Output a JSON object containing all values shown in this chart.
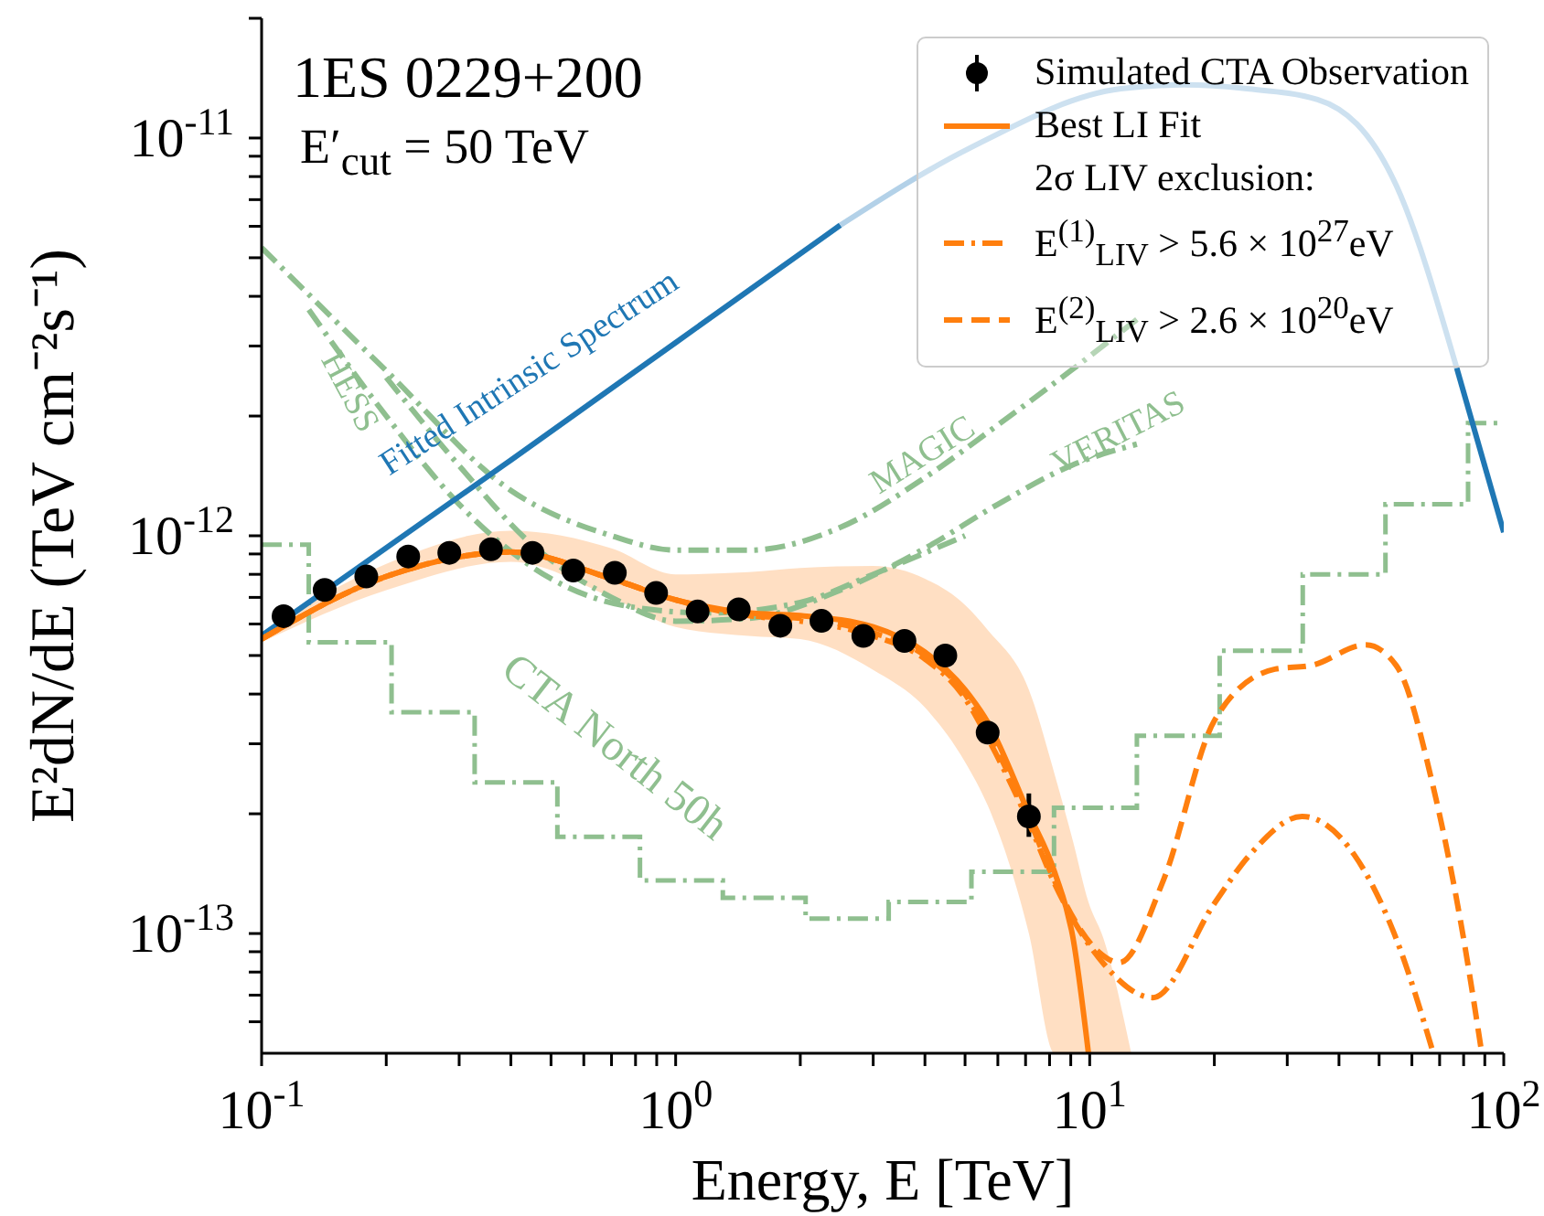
{
  "chart_data": {
    "type": "line",
    "title": "1ES 0229+200",
    "subtitle": "E′$_{cut}$ = 50 TeV",
    "xlabel": "Energy, E [TeV]",
    "ylabel": "E²dN/dE (TeV cm⁻²s⁻¹)",
    "log": "xy",
    "xlim": [
      0.1,
      100
    ],
    "ylim": [
      5e-14,
      2e-11
    ],
    "xticks": [
      {
        "value": 0.1,
        "label": "10$^{-1}$"
      },
      {
        "value": 0.2,
        "label": null
      },
      {
        "value": 0.3,
        "label": null
      },
      {
        "value": 0.4,
        "label": null
      },
      {
        "value": 0.5,
        "label": null
      },
      {
        "value": 0.6,
        "label": null
      },
      {
        "value": 0.7,
        "label": null
      },
      {
        "value": 0.8,
        "label": null
      },
      {
        "value": 0.9,
        "label": null
      },
      {
        "value": 1,
        "label": "10$^{0}$"
      },
      {
        "value": 2,
        "label": null
      },
      {
        "value": 3,
        "label": null
      },
      {
        "value": 4,
        "label": null
      },
      {
        "value": 5,
        "label": null
      },
      {
        "value": 6,
        "label": null
      },
      {
        "value": 7,
        "label": null
      },
      {
        "value": 8,
        "label": null
      },
      {
        "value": 9,
        "label": null
      },
      {
        "value": 10,
        "label": "10$^{1}$"
      },
      {
        "value": 20,
        "label": null
      },
      {
        "value": 30,
        "label": null
      },
      {
        "value": 40,
        "label": null
      },
      {
        "value": 50,
        "label": null
      },
      {
        "value": 60,
        "label": null
      },
      {
        "value": 70,
        "label": null
      },
      {
        "value": 80,
        "label": null
      },
      {
        "value": 90,
        "label": null
      },
      {
        "value": 100,
        "label": "10$^{2}$"
      }
    ],
    "yticks": [
      {
        "value": 6e-14,
        "label": null
      },
      {
        "value": 7e-14,
        "label": null
      },
      {
        "value": 8e-14,
        "label": null
      },
      {
        "value": 9e-14,
        "label": null
      },
      {
        "value": 1e-13,
        "label": "10$^{-13}$"
      },
      {
        "value": 2e-13,
        "label": null
      },
      {
        "value": 3e-13,
        "label": null
      },
      {
        "value": 4e-13,
        "label": null
      },
      {
        "value": 5e-13,
        "label": null
      },
      {
        "value": 6e-13,
        "label": null
      },
      {
        "value": 7e-13,
        "label": null
      },
      {
        "value": 8e-13,
        "label": null
      },
      {
        "value": 9e-13,
        "label": null
      },
      {
        "value": 1e-12,
        "label": "10$^{-12}$"
      },
      {
        "value": 2e-12,
        "label": null
      },
      {
        "value": 3e-12,
        "label": null
      },
      {
        "value": 4e-12,
        "label": null
      },
      {
        "value": 5e-12,
        "label": null
      },
      {
        "value": 6e-12,
        "label": null
      },
      {
        "value": 7e-12,
        "label": null
      },
      {
        "value": 8e-12,
        "label": null
      },
      {
        "value": 9e-12,
        "label": null
      },
      {
        "value": 1e-11,
        "label": "10$^{-11}$"
      },
      {
        "value": 2e-11,
        "label": null
      }
    ],
    "grid": false,
    "legend": "top right",
    "legend_title": "2σ LIV exclusion:",
    "series": [
      {
        "type": "step",
        "color": "#8fbf8f",
        "line_style": "dashdot",
        "x": [
          0.1,
          0.13,
          0.206,
          0.327,
          0.518,
          0.82,
          1.3,
          2.06,
          3.27,
          5.18,
          8.2,
          13,
          20.6,
          32.7,
          51.8,
          82,
          100
        ],
        "values": [
          9.5e-13,
          5.4e-13,
          3.6e-13,
          2.4e-13,
          1.75e-13,
          1.36e-13,
          1.23e-13,
          1.09e-13,
          1.2e-13,
          1.43e-13,
          2.07e-13,
          3.14e-13,
          5.14e-13,
          8e-13,
          1.2e-12,
          1.92e-12,
          1.92e-12
        ]
      },
      {
        "color": "#8fbf8f",
        "line_style": "dashdot",
        "x": [
          0.13,
          0.2,
          0.3,
          0.5,
          0.8,
          1.2,
          2,
          3,
          5
        ],
        "values": [
          3.7e-12,
          2e-12,
          1.2e-12,
          7.8e-13,
          6.6e-13,
          6.4e-13,
          6.8e-13,
          8e-13,
          1e-12
        ]
      },
      {
        "color": "#8fbf8f",
        "line_style": "dashdot",
        "x": [
          0.1,
          0.2,
          0.4,
          0.7,
          1,
          1.5,
          2.5,
          4,
          6,
          9,
          13
        ],
        "values": [
          5.3e-12,
          2.6e-12,
          1.3e-12,
          1e-12,
          9.2e-13,
          9.2e-13,
          1.05e-12,
          1.4e-12,
          1.9e-12,
          2.6e-12,
          3.5e-12
        ]
      },
      {
        "color": "#8fbf8f",
        "line_style": "dashdot",
        "x": [
          0.2,
          0.3,
          0.45,
          0.7,
          1,
          1.5,
          2.5,
          4,
          6,
          9,
          13
        ],
        "values": [
          2.5e-12,
          1.5e-12,
          9.5e-13,
          7e-13,
          6.1e-13,
          6.2e-13,
          7.3e-13,
          9.3e-13,
          1.2e-12,
          1.5e-12,
          1.7e-12
        ]
      },
      {
        "color": "#1f77b4",
        "line_style": "solid",
        "x": [
          0.1,
          0.4,
          1,
          2.5
        ],
        "values": [
          5.61e-13,
          1.55e-12,
          3.06e-12,
          6.04e-12
        ]
      },
      {
        "color": "#b3d1e8",
        "line_style": "solid",
        "x": [
          2.5,
          5.1,
          11.9,
          16.9,
          24,
          35.5,
          55,
          77
        ],
        "values": [
          6.04e-12,
          9.4e-12,
          1.33e-11,
          1.36e-11,
          1.33e-11,
          1.25e-11,
          7.6e-12,
          2.64e-12
        ]
      },
      {
        "color": "#1f77b4",
        "line_style": "solid",
        "x": [
          77,
          100
        ],
        "values": [
          2.64e-12,
          1.02e-12
        ]
      },
      {
        "type": "scatter",
        "name": "Simulated CTA Observation",
        "color": "#000000",
        "marker": "circle",
        "x": [
          0.113,
          0.142,
          0.179,
          0.226,
          0.284,
          0.358,
          0.451,
          0.566,
          0.713,
          0.897,
          1.13,
          1.42,
          1.79,
          2.25,
          2.84,
          3.57,
          4.48,
          5.67,
          7.13
        ],
        "values": [
          6.28e-13,
          7.31e-13,
          7.9e-13,
          8.87e-13,
          9.06e-13,
          9.25e-13,
          9.06e-13,
          8.18e-13,
          8.07e-13,
          7.18e-13,
          6.45e-13,
          6.53e-13,
          5.94e-13,
          6.11e-13,
          5.6e-13,
          5.44e-13,
          5e-13,
          3.2e-13,
          1.97e-13
        ],
        "errors": [
          null,
          null,
          null,
          null,
          null,
          null,
          null,
          null,
          null,
          null,
          null,
          null,
          null,
          null,
          null,
          null,
          null,
          null,
          [
            1.75e-13,
            2.25e-13
          ]
        ]
      },
      {
        "name": "Best LI Fit",
        "color": "#ff7f0e",
        "line_style": "solid",
        "x": [
          0.1,
          0.2,
          0.4,
          0.7,
          1,
          1.5,
          2,
          3,
          4,
          5,
          5.67,
          7.13,
          8.24,
          9.12,
          9.93,
          10.8,
          12.6
        ],
        "values": [
          5.5e-13,
          7.9e-13,
          9.1e-13,
          7.8e-13,
          6.9e-13,
          6.4e-13,
          6.3e-13,
          5.9e-13,
          5.1e-13,
          4.1e-13,
          3.4e-13,
          2e-13,
          1.42e-13,
          9.7e-14,
          5e-14,
          null,
          null
        ],
        "lower": [
          5.4e-13,
          7.3e-13,
          8.6e-13,
          7e-13,
          5.9e-13,
          5.6e-13,
          5.5e-13,
          4.6e-13,
          3.7e-13,
          2.7e-13,
          2.1e-13,
          1e-13,
          5e-14,
          5e-14,
          5e-14,
          5e-14,
          5e-14
        ],
        "upper": [
          5.7e-13,
          8.5e-13,
          1.03e-12,
          9.3e-13,
          8e-13,
          8.1e-13,
          8.3e-13,
          8.4e-13,
          7.8e-13,
          6.7e-13,
          5.8e-13,
          4.1e-13,
          2.5e-13,
          1.7e-13,
          1.2e-13,
          9.7e-14,
          5e-14
        ]
      },
      {
        "name": "E$^{(1)}$$_{LIV}$ > 5.6 × 10$^{27}$eV",
        "color": "#ff7f0e",
        "line_style": "dashdot",
        "x": [
          0.1,
          0.2,
          0.4,
          0.7,
          1,
          1.5,
          2,
          3,
          4,
          5,
          5.67,
          7.13,
          8.24,
          10.8,
          14.2,
          20,
          24.4,
          32.6,
          43.5,
          55,
          67.6
        ],
        "values": [
          5.5e-13,
          7.9e-13,
          9.1e-13,
          7.8e-13,
          6.9e-13,
          6.3e-13,
          6.1e-13,
          5.6e-13,
          4.9e-13,
          3.9e-13,
          3.1e-13,
          1.9e-13,
          1.33e-13,
          8.4e-14,
          6.9e-14,
          1.19e-13,
          1.58e-13,
          1.97e-13,
          1.58e-13,
          9.7e-14,
          5e-14
        ]
      },
      {
        "name": "E$^{(2)}$$_{LIV}$ > 2.6 × 10$^{20}$eV",
        "color": "#ff7f0e",
        "line_style": "dashed",
        "x": [
          0.1,
          0.2,
          0.4,
          0.7,
          1,
          1.5,
          2,
          3,
          4,
          5,
          5.67,
          7.13,
          8.24,
          10.5,
          11.8,
          15.1,
          20,
          28,
          34.3,
          46.4,
          55,
          67.6,
          80,
          88.5
        ],
        "values": [
          5.5e-13,
          7.9e-13,
          9.1e-13,
          7.8e-13,
          6.9e-13,
          6.3e-13,
          6.2e-13,
          5.7e-13,
          5e-13,
          4e-13,
          3.2e-13,
          1.95e-13,
          1.35e-13,
          9e-14,
          8.45e-14,
          1.37e-13,
          3.43e-13,
          4.62e-13,
          4.72e-13,
          5.32e-13,
          4.72e-13,
          2.33e-13,
          9.7e-14,
          5e-14
        ]
      }
    ],
    "annotations": [
      "Fitted Intrinsic Spectrum",
      "HESS",
      "MAGIC",
      "VERITAS",
      "CTA North 50h"
    ]
  }
}
